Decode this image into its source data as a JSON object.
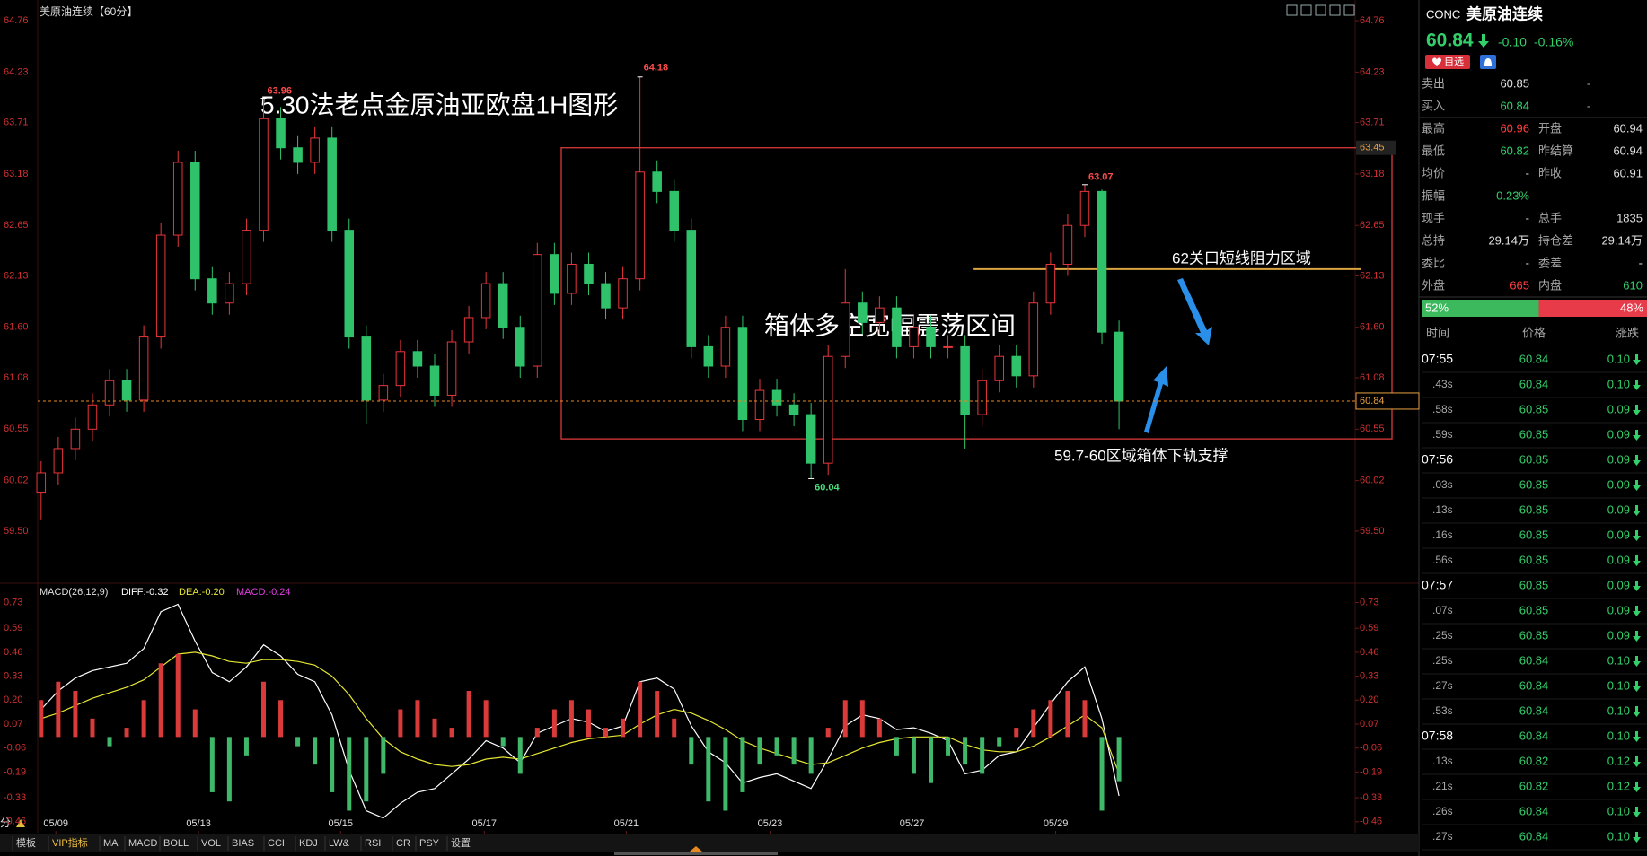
{
  "chart_data": [
    {
      "type": "candlestick",
      "title": "美原油连续【60分】",
      "open": [
        59.9,
        60.1,
        60.35,
        60.55,
        60.8,
        61.05,
        60.85,
        61.5,
        62.55,
        63.3,
        62.1,
        61.85,
        62.05,
        62.6,
        63.75,
        63.45,
        63.3,
        63.55,
        62.6,
        61.5,
        60.85,
        61.0,
        61.35,
        61.2,
        60.9,
        61.45,
        61.7,
        62.05,
        61.6,
        61.2,
        62.35,
        61.95,
        62.25,
        62.05,
        61.8,
        62.1,
        63.2,
        63.0,
        62.6,
        61.4,
        61.2,
        61.6,
        60.65,
        60.95,
        60.8,
        60.7,
        60.2,
        61.3,
        61.85,
        61.65,
        61.8,
        61.4,
        61.6,
        61.4,
        61.4,
        60.7,
        61.05,
        61.3,
        61.1,
        61.85,
        62.25,
        62.65,
        63.0,
        61.55
      ],
      "high": [
        60.22,
        60.47,
        60.67,
        60.92,
        61.17,
        61.17,
        61.62,
        62.67,
        63.42,
        63.42,
        62.22,
        62.17,
        62.72,
        63.96,
        63.87,
        63.57,
        63.67,
        63.67,
        62.72,
        61.62,
        61.12,
        61.47,
        61.47,
        61.32,
        61.57,
        61.82,
        62.17,
        62.17,
        61.72,
        62.47,
        62.47,
        62.37,
        62.37,
        62.17,
        62.22,
        64.18,
        63.32,
        63.12,
        62.72,
        61.52,
        61.72,
        61.72,
        61.07,
        61.07,
        60.92,
        60.82,
        61.42,
        62.2,
        61.97,
        61.92,
        61.92,
        61.72,
        61.72,
        61.52,
        61.52,
        61.17,
        61.42,
        61.42,
        61.97,
        62.37,
        62.77,
        63.07,
        63.02,
        61.67
      ],
      "low": [
        59.62,
        59.98,
        60.23,
        60.43,
        60.68,
        60.73,
        60.73,
        61.38,
        62.43,
        61.98,
        61.73,
        61.73,
        61.93,
        62.48,
        63.33,
        63.18,
        63.18,
        62.48,
        61.38,
        60.6,
        60.73,
        60.88,
        61.08,
        60.78,
        60.78,
        61.33,
        61.58,
        61.48,
        61.08,
        61.08,
        61.83,
        61.83,
        61.93,
        61.68,
        61.68,
        61.98,
        62.88,
        62.48,
        61.28,
        61.08,
        61.08,
        60.53,
        60.53,
        60.68,
        60.58,
        60.04,
        60.08,
        61.18,
        61.53,
        61.53,
        61.28,
        61.28,
        61.28,
        61.28,
        60.35,
        60.58,
        60.93,
        60.98,
        60.98,
        61.73,
        62.13,
        62.53,
        61.43,
        60.55
      ],
      "close": [
        60.1,
        60.35,
        60.55,
        60.8,
        61.05,
        60.85,
        61.5,
        62.55,
        63.3,
        62.1,
        61.85,
        62.05,
        62.6,
        63.75,
        63.45,
        63.3,
        63.55,
        62.6,
        61.5,
        60.85,
        61.0,
        61.35,
        61.2,
        60.9,
        61.45,
        61.7,
        62.05,
        61.6,
        61.2,
        62.35,
        61.95,
        62.25,
        62.05,
        61.8,
        62.1,
        63.2,
        63.0,
        62.6,
        61.4,
        61.2,
        61.6,
        60.65,
        60.95,
        60.8,
        60.7,
        60.2,
        61.3,
        61.85,
        61.65,
        61.8,
        61.4,
        61.6,
        61.4,
        61.4,
        60.7,
        61.05,
        61.3,
        61.1,
        61.85,
        62.25,
        62.65,
        63.0,
        61.55,
        60.84
      ],
      "up_color": "#e8363b",
      "down_color": "#2fc26a",
      "xlim": [
        -0.2,
        76.8
      ],
      "xticks": [
        {
          "value": 0.86,
          "label": "05/09"
        },
        {
          "value": 9.2,
          "label": "05/13"
        },
        {
          "value": 17.5,
          "label": "05/15"
        },
        {
          "value": 25.9,
          "label": "05/17"
        },
        {
          "value": 34.2,
          "label": "05/21"
        },
        {
          "value": 42.6,
          "label": "05/23"
        },
        {
          "value": 50.9,
          "label": "05/27"
        },
        {
          "value": 59.3,
          "label": "05/29"
        }
      ],
      "ylim": [
        58.99,
        64.89
      ],
      "yticks": [
        64.76,
        64.23,
        63.71,
        63.18,
        62.65,
        62.13,
        {
          "value": 61.6,
          "label": "61.60"
        },
        61.08,
        60.55,
        60.02,
        {
          "value": 59.5,
          "label": "59.50"
        }
      ],
      "box": {
        "top": 63.45,
        "bottom": 60.45,
        "start": 30.4,
        "color": "#d83a3a"
      },
      "resistance": {
        "value": 62.2,
        "start": 54.5,
        "color": "#d9a441"
      },
      "annotations": [
        "5.30法老点金原油亚欧盘1H图形",
        "箱体多空宽幅震荡区间",
        "62关口短线阻力区域",
        "59.7-60区域箱体下轨支撑"
      ]
    },
    {
      "type": "macd",
      "title": "MACD(26,12,9)",
      "series": [
        {
          "name": "DIFF:-0.32",
          "color": "#ffffff",
          "values": [
            0.15,
            0.25,
            0.32,
            0.36,
            0.38,
            0.4,
            0.48,
            0.68,
            0.72,
            0.52,
            0.35,
            0.3,
            0.38,
            0.5,
            0.44,
            0.34,
            0.3,
            0.12,
            -0.18,
            -0.4,
            -0.44,
            -0.36,
            -0.3,
            -0.28,
            -0.2,
            -0.12,
            -0.02,
            -0.06,
            -0.14,
            0.02,
            0.06,
            0.1,
            0.08,
            0.03,
            0.06,
            0.3,
            0.32,
            0.26,
            0.06,
            -0.08,
            -0.14,
            -0.25,
            -0.22,
            -0.2,
            -0.24,
            -0.28,
            -0.12,
            0.06,
            0.12,
            0.1,
            0.04,
            0.05,
            0.02,
            -0.02,
            -0.2,
            -0.18,
            -0.1,
            -0.08,
            0.05,
            0.18,
            0.3,
            0.38,
            0.1,
            -0.32
          ]
        },
        {
          "name": "DEA:-0.20",
          "color": "#e6e633",
          "values": [
            0.1,
            0.13,
            0.17,
            0.21,
            0.24,
            0.27,
            0.31,
            0.38,
            0.45,
            0.46,
            0.44,
            0.41,
            0.4,
            0.42,
            0.42,
            0.41,
            0.39,
            0.33,
            0.23,
            0.1,
            -0.01,
            -0.08,
            -0.12,
            -0.15,
            -0.16,
            -0.15,
            -0.12,
            -0.11,
            -0.12,
            -0.09,
            -0.06,
            -0.03,
            -0.01,
            0.0,
            0.01,
            0.07,
            0.12,
            0.15,
            0.13,
            0.09,
            0.04,
            -0.02,
            -0.06,
            -0.09,
            -0.12,
            -0.15,
            -0.14,
            -0.1,
            -0.06,
            -0.03,
            -0.01,
            0.0,
            0.0,
            0.0,
            -0.04,
            -0.07,
            -0.08,
            -0.08,
            -0.05,
            0.0,
            0.06,
            0.12,
            0.05,
            -0.2
          ]
        },
        {
          "name": "MACD:-0.24",
          "color": "#e040e0",
          "style": "histogram",
          "pos_color": "#d93a3a",
          "neg_color": "#3fb86a",
          "values": [
            0.2,
            0.3,
            0.25,
            0.1,
            -0.05,
            0.05,
            0.2,
            0.4,
            0.45,
            0.15,
            -0.3,
            -0.35,
            -0.1,
            0.3,
            0.2,
            -0.05,
            -0.15,
            -0.3,
            -0.4,
            -0.35,
            -0.2,
            0.15,
            0.2,
            0.1,
            0.05,
            0.25,
            0.2,
            -0.05,
            -0.2,
            0.05,
            0.15,
            0.2,
            0.15,
            0.05,
            0.1,
            0.3,
            0.25,
            0.1,
            -0.15,
            -0.35,
            -0.4,
            -0.3,
            -0.15,
            -0.1,
            -0.15,
            -0.2,
            0.05,
            0.2,
            0.2,
            0.1,
            -0.1,
            -0.2,
            -0.25,
            -0.1,
            -0.15,
            -0.2,
            -0.05,
            0.05,
            0.15,
            0.2,
            0.25,
            0.2,
            -0.4,
            -0.24
          ]
        }
      ],
      "xlim": [
        -0.2,
        76.8
      ],
      "ylim": [
        -0.5,
        0.82
      ],
      "yticks": [
        0.73,
        0.59,
        0.46,
        0.33,
        {
          "value": 0.2,
          "label": "0.20"
        },
        0.07,
        -0.06,
        -0.19,
        -0.33,
        -0.46
      ]
    }
  ],
  "quote": {
    "code": "CONC",
    "name": "美原油连续",
    "price": 60.84,
    "change": "-0.10",
    "change_pct": "-0.16%",
    "button": "自选",
    "rows": [
      {
        "cells": [
          "卖出",
          60.85,
          "-"
        ],
        "color": "#e0e0e0"
      },
      {
        "cells": [
          "买入",
          60.84,
          "-"
        ],
        "color": "#33d06a"
      },
      {
        "cells": [
          "最高",
          60.96,
          "开盘",
          60.94
        ],
        "color": "#ff4040"
      },
      {
        "cells": [
          "最低",
          60.82,
          "昨结算",
          60.94
        ],
        "color": "#33d06a"
      },
      {
        "cells": [
          "均价",
          "-",
          "昨收",
          60.91
        ],
        "color": "#e0e0e0"
      },
      {
        "cells": [
          "振幅",
          "0.23%"
        ],
        "color": "#33d06a"
      },
      {
        "cells": [
          "现手",
          "-",
          "总手",
          1835
        ],
        "color": "#e0e0e0"
      },
      {
        "cells": [
          "总持",
          "29.14万",
          "持仓差",
          "29.14万"
        ],
        "color": "#e0e0e0"
      },
      {
        "cells": [
          "委比",
          "-",
          "委差",
          "-"
        ],
        "color": "#e0e0e0"
      },
      {
        "cells": [
          "外盘",
          665,
          "内盘",
          610
        ],
        "color": "#ff4040",
        "color2": "#33d06a"
      }
    ],
    "ratio": {
      "values": [
        52,
        48
      ],
      "value_labels": [
        "52%",
        "48%"
      ],
      "colors": [
        "#3cb95c",
        "#e83b4a"
      ]
    }
  },
  "trades": {
    "headers": [
      "时间",
      "价格",
      "涨跌"
    ],
    "rows": [
      [
        "07:55",
        60.84,
        "0.10"
      ],
      [
        ".43s",
        60.84,
        "0.10"
      ],
      [
        ".58s",
        60.85,
        "0.09"
      ],
      [
        ".59s",
        60.85,
        "0.09"
      ],
      [
        "07:56",
        60.85,
        "0.09"
      ],
      [
        ".03s",
        60.85,
        "0.09"
      ],
      [
        ".13s",
        60.85,
        "0.09"
      ],
      [
        ".16s",
        60.85,
        "0.09"
      ],
      [
        ".56s",
        60.85,
        "0.09"
      ],
      [
        "07:57",
        60.85,
        "0.09"
      ],
      [
        ".07s",
        60.85,
        "0.09"
      ],
      [
        ".25s",
        60.85,
        "0.09"
      ],
      [
        ".25s",
        60.84,
        "0.10"
      ],
      [
        ".27s",
        60.84,
        "0.10"
      ],
      [
        ".53s",
        60.84,
        "0.10"
      ],
      [
        "07:58",
        60.84,
        "0.10"
      ],
      [
        ".13s",
        60.82,
        "0.12"
      ],
      [
        ".21s",
        60.82,
        "0.12"
      ],
      [
        ".26s",
        60.84,
        "0.10"
      ],
      [
        ".27s",
        60.84,
        "0.10"
      ]
    ]
  },
  "bottom_left": "分",
  "toolbar": [
    "模板",
    "VIP指标",
    "MA",
    "MACD",
    "BOLL",
    "VOL",
    "BIAS",
    "CCI",
    "KDJ",
    "LW&",
    "RSI",
    "CR",
    "PSY",
    "设置"
  ]
}
